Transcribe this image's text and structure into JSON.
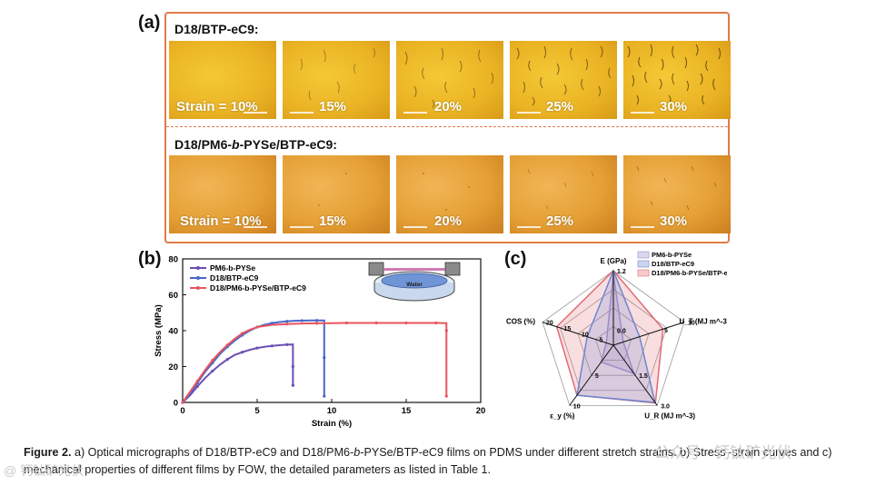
{
  "panel_a": {
    "letter": "(a)",
    "row1": {
      "title": "D18/BTP-eC9:",
      "tiles": [
        "Strain = 10%",
        "15%",
        "20%",
        "25%",
        "30%"
      ]
    },
    "row2": {
      "title": "D18/PM6-b-PYSe/BTP-eC9:",
      "tiles": [
        "Strain = 10%",
        "15%",
        "20%",
        "25%",
        "30%"
      ]
    }
  },
  "panel_b": {
    "letter": "(b)"
  },
  "panel_c": {
    "letter": "(c)"
  },
  "chart_data": [
    {
      "type": "line",
      "title": "",
      "xlabel": "Strain (%)",
      "ylabel": "Stress (MPa)",
      "xlim": [
        0,
        20
      ],
      "ylim": [
        0,
        80
      ],
      "xticks": [
        "0",
        "5",
        "10",
        "15",
        "20"
      ],
      "yticks": [
        "0",
        "20",
        "40",
        "60",
        "80"
      ],
      "inset_label": "Water",
      "legend_position": "top-left",
      "series": [
        {
          "name": "PM6-b-PYSe",
          "color": "#6a4fb5",
          "x": [
            0,
            0.5,
            1,
            1.5,
            2,
            2.5,
            3,
            3.5,
            4,
            4.5,
            5,
            5.5,
            6,
            6.5,
            7,
            7.4,
            7.4,
            7.4
          ],
          "y": [
            0,
            4,
            9,
            13.5,
            17.5,
            21,
            24,
            26.5,
            28,
            29.3,
            30.3,
            31,
            31.5,
            31.9,
            32.2,
            32.3,
            20,
            9.5
          ]
        },
        {
          "name": "D18/BTP-eC9",
          "color": "#4a66c8",
          "x": [
            0,
            0.5,
            1,
            1.5,
            2,
            2.5,
            3,
            3.5,
            4,
            4.5,
            5,
            5.5,
            6,
            6.5,
            7,
            7.5,
            8,
            8.5,
            9,
            9.5,
            9.5,
            9.5
          ],
          "y": [
            0,
            5,
            11,
            17,
            22,
            27,
            31,
            34.5,
            37.5,
            40,
            42,
            43.3,
            44.2,
            44.8,
            45.2,
            45.5,
            45.6,
            45.7,
            45.7,
            45.7,
            25,
            3.5
          ]
        },
        {
          "name": "D18/PM6-b-PYSe/BTP-eC9",
          "color": "#e8545e",
          "x": [
            0,
            0.5,
            1,
            1.5,
            2,
            2.5,
            3,
            3.5,
            4,
            4.5,
            5,
            6,
            7,
            8,
            9,
            10,
            11,
            12,
            13,
            14,
            15,
            16,
            17,
            17.7,
            17.7,
            17.7
          ],
          "y": [
            0,
            6,
            12,
            18,
            23.5,
            28,
            32,
            35.5,
            38.5,
            40.5,
            42,
            43.2,
            43.7,
            44,
            44.1,
            44.2,
            44.3,
            44.3,
            44.3,
            44.3,
            44.3,
            44.3,
            44.3,
            44.2,
            40,
            3.5
          ]
        }
      ]
    },
    {
      "type": "radar",
      "title": "",
      "legend_position": "top-right",
      "axes": [
        {
          "label": "E (GPa)",
          "max_label": "1.2",
          "ring_labels": [
            "0.0",
            "",
            "",
            "",
            "1.2"
          ]
        },
        {
          "label": "U_T (MJ m^-3)",
          "max_label": "10",
          "ring_labels": [
            "",
            "5",
            "10"
          ]
        },
        {
          "label": "U_R (MJ m^-3)",
          "max_label": "3.0",
          "ring_labels": [
            "1.5",
            "3.0"
          ]
        },
        {
          "label": "ε_y (%)",
          "max_label": "10",
          "ring_labels": [
            "5",
            "10"
          ]
        },
        {
          "label": "COS (%)",
          "max_label": "20",
          "ring_labels": [
            "5",
            "10",
            "15",
            "20"
          ]
        }
      ],
      "series": [
        {
          "name": "PM6-b-PYSe",
          "color": "#9a8cc8",
          "values_fraction": [
            0.95,
            0.14,
            0.47,
            0.28,
            0.1
          ]
        },
        {
          "name": "D18/BTP-eC9",
          "color": "#6c86d0",
          "values_fraction": [
            1.0,
            0.37,
            0.95,
            0.83,
            0.37
          ]
        },
        {
          "name": "D18/PM6-b-PYSe/BTP-eC9",
          "color": "#e36a73",
          "values_fraction": [
            1.0,
            0.7,
            0.96,
            0.83,
            0.8
          ]
        }
      ]
    }
  ],
  "caption": {
    "label": "Figure 2.",
    "text": " a) Optical micrographs of D18/BTP-eC9 and D18/PM6-b-PYSe/BTP-eC9 films on PDMS under different stretch strains. b) Stress–strain curves and c) mechanical properties of different films by FOW, the detailed parameters as listed in Table 1."
  },
  "watermark": {
    "text": "公众号 · 钙钛矿光伏",
    "left_text": "@ 钙钛矿光伏"
  }
}
